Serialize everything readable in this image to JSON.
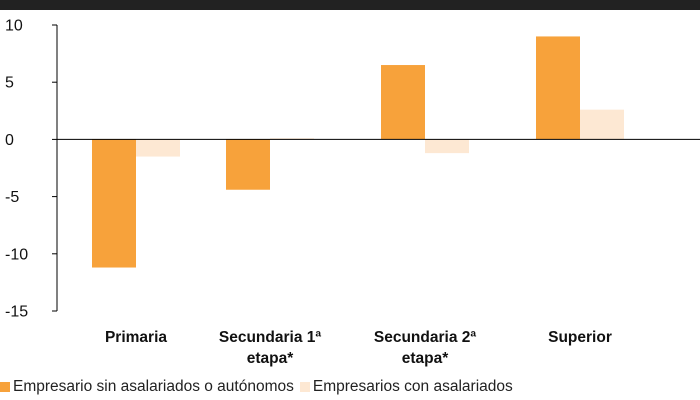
{
  "chart_data": {
    "type": "bar",
    "categories": [
      [
        "Primaria"
      ],
      [
        "Secundaria 1ª",
        "etapa*"
      ],
      [
        "Secundaria 2ª",
        "etapa*"
      ],
      [
        "Superior"
      ]
    ],
    "series": [
      {
        "name": "Empresario sin asalariados o autónomos",
        "values": [
          -11.2,
          -4.4,
          6.5,
          9.0
        ],
        "color": "#f7a23b"
      },
      {
        "name": "Empresarios con asalariados",
        "values": [
          -1.5,
          0.1,
          -1.2,
          2.6
        ],
        "color": "#fde8d3"
      }
    ],
    "yticks": [
      10,
      5,
      0,
      -5,
      -10,
      -15
    ],
    "ylim": [
      -15,
      10
    ],
    "grid": false,
    "legend_position": "bottom",
    "xlabel": "",
    "ylabel": "",
    "title": ""
  }
}
